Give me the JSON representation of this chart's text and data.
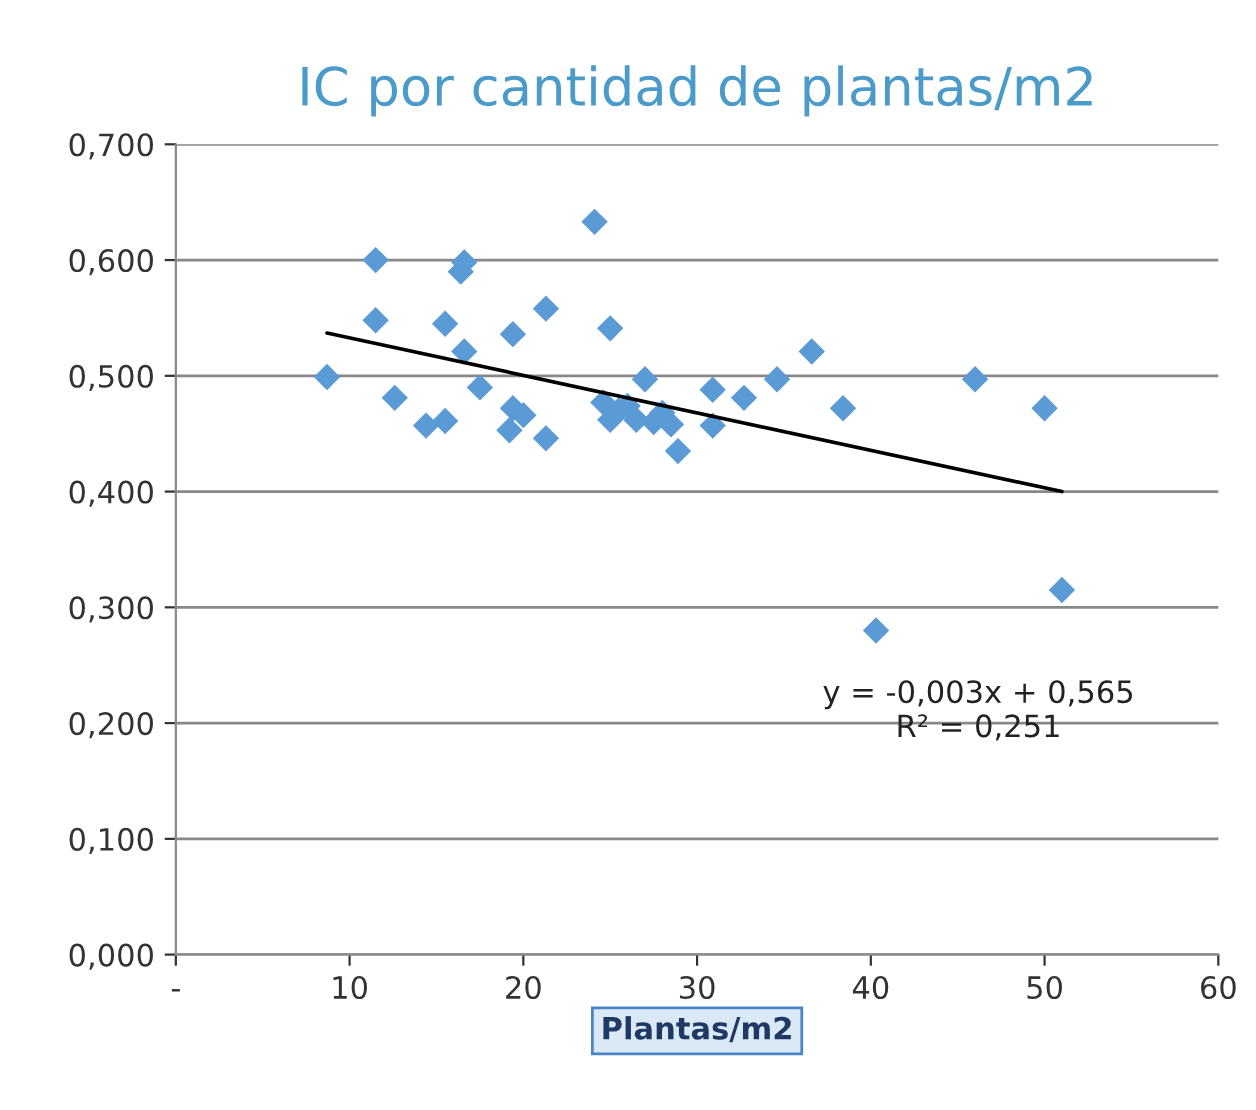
{
  "chart_data": {
    "type": "scatter",
    "title": "IC por cantidad de plantas/m2",
    "xlabel": "Plantas/m2",
    "series": [
      {
        "color": "#5b9bd5",
        "marker": "diamond",
        "x": [
          8.7,
          11.5,
          16.6,
          16.4,
          11.5,
          15.5,
          21.3,
          19.4,
          16.6,
          17.5,
          12.6,
          14.4,
          15.5,
          19.4,
          20,
          19.2,
          21.3,
          24.1,
          25.0,
          27.0,
          24.6,
          25,
          25.5,
          26,
          26.5,
          27.5,
          28.5,
          28,
          28.9,
          30.9,
          30.9,
          32.7,
          34.6,
          36.6,
          38.4,
          40.3,
          46,
          50,
          51
        ],
        "values": [
          0.499,
          0.6,
          0.598,
          0.59,
          0.548,
          0.545,
          0.558,
          0.536,
          0.521,
          0.49,
          0.481,
          0.457,
          0.461,
          0.472,
          0.466,
          0.453,
          0.446,
          0.633,
          0.541,
          0.497,
          0.477,
          0.462,
          0.47,
          0.474,
          0.462,
          0.46,
          0.458,
          0.468,
          0.435,
          0.488,
          0.457,
          0.481,
          0.497,
          0.521,
          0.472,
          0.28,
          0.497,
          0.472,
          0.315
        ]
      },
      {
        "type": "line",
        "color": "#000000",
        "marker": "none",
        "line_style": "solid",
        "x": [
          8.7,
          51
        ],
        "values": [
          0.537,
          0.4
        ]
      }
    ],
    "annotations": [
      "y = -0,003x + 0,565\nR² = 0,251"
    ],
    "xlim": [
      0,
      60
    ],
    "xticks": [
      {
        "value": 0,
        "label": "-"
      },
      10,
      20,
      30,
      40,
      50,
      60
    ],
    "ylim": [
      0,
      0.7
    ],
    "yticks": [
      {
        "value": 0,
        "label": "0,000"
      },
      {
        "value": 0.1,
        "label": "0,100"
      },
      {
        "value": 0.2,
        "label": "0,200"
      },
      {
        "value": 0.3,
        "label": "0,300"
      },
      {
        "value": 0.4,
        "label": "0,400"
      },
      {
        "value": 0.5,
        "label": "0,500"
      },
      {
        "value": 0.6,
        "label": "0,600"
      },
      {
        "value": 0.7,
        "label": "0,700"
      }
    ],
    "grid": "y",
    "legend": false
  }
}
